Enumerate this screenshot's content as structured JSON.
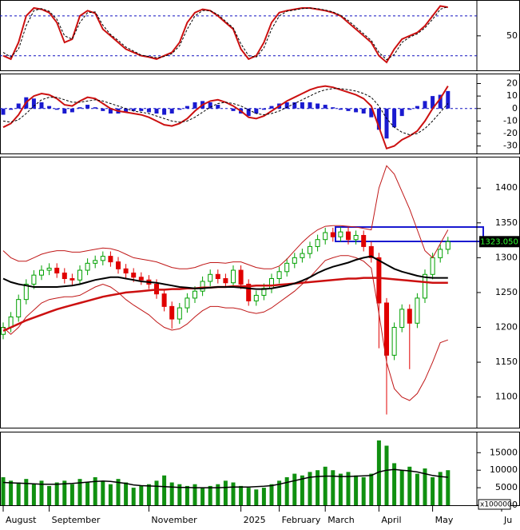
{
  "chart_data": [
    {
      "type": "line",
      "ylim": [
        -2,
        104
      ],
      "yticks": [
        50
      ],
      "levels": [
        80,
        20
      ],
      "level_color": "#1010c0",
      "series": [
        {
          "color": "#cc1010",
          "dash": false,
          "values": [
            20,
            15,
            40,
            80,
            92,
            90,
            85,
            70,
            40,
            45,
            80,
            88,
            84,
            60,
            50,
            40,
            30,
            25,
            20,
            18,
            15,
            20,
            25,
            40,
            70,
            85,
            90,
            88,
            80,
            70,
            60,
            30,
            15,
            20,
            40,
            70,
            85,
            88,
            90,
            92,
            92,
            90,
            88,
            85,
            80,
            70,
            60,
            50,
            40,
            20,
            10,
            30,
            45,
            50,
            55,
            65,
            80,
            95,
            93
          ]
        },
        {
          "color": "#000000",
          "dash": true,
          "values": [
            25,
            18,
            30,
            65,
            88,
            91,
            87,
            75,
            50,
            45,
            70,
            85,
            86,
            66,
            52,
            43,
            33,
            27,
            21,
            19,
            17,
            19,
            23,
            35,
            60,
            80,
            88,
            88,
            82,
            72,
            62,
            38,
            20,
            18,
            32,
            60,
            80,
            87,
            89,
            91,
            92,
            91,
            89,
            86,
            81,
            73,
            63,
            53,
            43,
            25,
            14,
            22,
            40,
            48,
            53,
            62,
            75,
            90,
            94
          ]
        }
      ]
    },
    {
      "type": "line",
      "ylim": [
        -36,
        28
      ],
      "yticks": [
        20,
        10,
        0,
        -10,
        -20,
        -30
      ],
      "levels": [
        0
      ],
      "level_color": "#1010c0",
      "series": [
        {
          "kind": "bar",
          "color": "#1a1ad0",
          "values": [
            -5,
            -1,
            4,
            9,
            8,
            5,
            2,
            -1,
            -4,
            -3,
            1,
            3,
            1,
            -2,
            -4,
            -4,
            -3,
            -2,
            -2,
            -3,
            -4,
            -5,
            -4,
            -1,
            2,
            5,
            6,
            5,
            3,
            0,
            -2,
            -4,
            -6,
            -4,
            -1,
            2,
            4,
            5,
            5,
            5,
            5,
            4,
            3,
            1,
            -1,
            -2,
            -3,
            -4,
            -7,
            -17,
            -24,
            -15,
            -6,
            -1,
            2,
            6,
            10,
            11,
            14
          ]
        },
        {
          "color": "#cc1010",
          "dash": false,
          "values": [
            -15,
            -12,
            -5,
            5,
            10,
            12,
            11,
            8,
            3,
            2,
            6,
            9,
            8,
            4,
            0,
            -2,
            -3,
            -4,
            -5,
            -7,
            -10,
            -13,
            -14,
            -12,
            -8,
            -2,
            3,
            6,
            7,
            5,
            2,
            -2,
            -7,
            -8,
            -6,
            -2,
            2,
            6,
            9,
            12,
            15,
            17,
            18,
            17,
            15,
            13,
            11,
            8,
            2,
            -15,
            -32,
            -30,
            -25,
            -22,
            -18,
            -10,
            0,
            8,
            18
          ]
        },
        {
          "color": "#000000",
          "dash": true,
          "values": [
            -10,
            -11,
            -9,
            -4,
            2,
            7,
            9,
            9,
            7,
            5,
            5,
            6,
            7,
            6,
            4,
            2,
            0,
            -2,
            -3,
            -4,
            -6,
            -8,
            -10,
            -11,
            -10,
            -7,
            -3,
            1,
            4,
            5,
            4,
            2,
            -1,
            -4,
            -5,
            -4,
            -2,
            1,
            4,
            7,
            10,
            13,
            15,
            16,
            16,
            15,
            14,
            12,
            9,
            2,
            -8,
            -15,
            -19,
            -21,
            -20,
            -16,
            -10,
            -3,
            4
          ]
        }
      ]
    },
    {
      "type": "candlestick",
      "ylim": [
        1056,
        1445
      ],
      "yticks": [
        1100,
        1150,
        1200,
        1250,
        1300,
        1350,
        1400
      ],
      "up_color": "#00a000",
      "down_color": "#e00000",
      "last_price_label": "1323.050",
      "open": [
        1190,
        1200,
        1215,
        1240,
        1262,
        1275,
        1282,
        1285,
        1278,
        1270,
        1268,
        1282,
        1292,
        1296,
        1302,
        1294,
        1284,
        1278,
        1272,
        1268,
        1262,
        1248,
        1230,
        1212,
        1228,
        1242,
        1252,
        1266,
        1276,
        1270,
        1264,
        1282,
        1262,
        1238,
        1246,
        1256,
        1270,
        1280,
        1292,
        1300,
        1306,
        1316,
        1326,
        1336,
        1330,
        1337,
        1326,
        1332,
        1316,
        1300,
        1235,
        1160,
        1200,
        1226,
        1206,
        1242,
        1276,
        1300,
        1312
      ],
      "high": [
        1207,
        1222,
        1247,
        1269,
        1282,
        1289,
        1292,
        1292,
        1285,
        1277,
        1289,
        1299,
        1303,
        1309,
        1309,
        1301,
        1291,
        1285,
        1279,
        1275,
        1269,
        1255,
        1237,
        1235,
        1249,
        1259,
        1273,
        1283,
        1283,
        1277,
        1289,
        1289,
        1269,
        1253,
        1263,
        1277,
        1287,
        1299,
        1307,
        1313,
        1323,
        1333,
        1343,
        1343,
        1344,
        1344,
        1339,
        1339,
        1323,
        1307,
        1242,
        1207,
        1233,
        1233,
        1249,
        1283,
        1307,
        1319,
        1330
      ],
      "low": [
        1183,
        1193,
        1208,
        1233,
        1255,
        1268,
        1275,
        1271,
        1263,
        1261,
        1261,
        1275,
        1285,
        1289,
        1287,
        1277,
        1271,
        1265,
        1261,
        1255,
        1241,
        1223,
        1198,
        1205,
        1221,
        1235,
        1245,
        1259,
        1263,
        1257,
        1257,
        1255,
        1231,
        1231,
        1239,
        1249,
        1263,
        1273,
        1285,
        1293,
        1299,
        1309,
        1319,
        1323,
        1323,
        1319,
        1319,
        1309,
        1293,
        1170,
        1075,
        1153,
        1193,
        1140,
        1199,
        1235,
        1269,
        1293,
        1305
      ],
      "close": [
        1200,
        1215,
        1240,
        1262,
        1275,
        1282,
        1285,
        1278,
        1270,
        1268,
        1282,
        1292,
        1296,
        1302,
        1294,
        1284,
        1278,
        1272,
        1268,
        1262,
        1248,
        1230,
        1212,
        1228,
        1242,
        1252,
        1266,
        1276,
        1270,
        1264,
        1282,
        1262,
        1238,
        1246,
        1256,
        1270,
        1280,
        1292,
        1300,
        1306,
        1316,
        1326,
        1336,
        1330,
        1337,
        1326,
        1332,
        1316,
        1300,
        1235,
        1160,
        1200,
        1226,
        1206,
        1242,
        1276,
        1300,
        1312,
        1323.05
      ],
      "series": [
        {
          "color": "#c01818",
          "width": 1,
          "values": [
            1310,
            1300,
            1295,
            1295,
            1300,
            1305,
            1308,
            1310,
            1310,
            1308,
            1308,
            1310,
            1312,
            1314,
            1313,
            1310,
            1305,
            1300,
            1298,
            1296,
            1294,
            1290,
            1286,
            1284,
            1284,
            1286,
            1290,
            1293,
            1293,
            1292,
            1294,
            1294,
            1290,
            1286,
            1284,
            1284,
            1288,
            1298,
            1310,
            1322,
            1332,
            1340,
            1345,
            1346,
            1346,
            1345,
            1344,
            1342,
            1340,
            1400,
            1432,
            1420,
            1395,
            1370,
            1340,
            1310,
            1300,
            1320,
            1340
          ]
        },
        {
          "color": "#c01818",
          "width": 1,
          "values": [
            1200,
            1190,
            1200,
            1215,
            1225,
            1235,
            1240,
            1242,
            1244,
            1244,
            1246,
            1252,
            1258,
            1262,
            1258,
            1250,
            1240,
            1232,
            1225,
            1218,
            1208,
            1200,
            1196,
            1198,
            1205,
            1215,
            1224,
            1230,
            1230,
            1228,
            1228,
            1226,
            1222,
            1220,
            1222,
            1228,
            1236,
            1244,
            1252,
            1262,
            1272,
            1284,
            1296,
            1300,
            1303,
            1303,
            1300,
            1295,
            1285,
            1220,
            1150,
            1112,
            1100,
            1095,
            1105,
            1125,
            1150,
            1178,
            1182
          ]
        },
        {
          "color": "#cc1010",
          "width": 2.5,
          "values": [
            1195,
            1200,
            1205,
            1210,
            1214,
            1218,
            1222,
            1226,
            1229,
            1232,
            1235,
            1238,
            1241,
            1244,
            1246,
            1248,
            1250,
            1251,
            1252,
            1253,
            1254,
            1254,
            1255,
            1255,
            1256,
            1256,
            1257,
            1257,
            1258,
            1258,
            1259,
            1259,
            1259,
            1260,
            1260,
            1260,
            1261,
            1262,
            1263,
            1264,
            1265,
            1266,
            1267,
            1268,
            1269,
            1270,
            1270,
            1271,
            1271,
            1271,
            1270,
            1269,
            1268,
            1267,
            1266,
            1265,
            1264,
            1264,
            1264
          ]
        },
        {
          "color": "#000000",
          "width": 2,
          "values": [
            1270,
            1265,
            1262,
            1260,
            1258,
            1258,
            1258,
            1258,
            1259,
            1260,
            1262,
            1265,
            1268,
            1270,
            1272,
            1272,
            1270,
            1268,
            1266,
            1265,
            1264,
            1262,
            1260,
            1258,
            1257,
            1256,
            1256,
            1257,
            1258,
            1258,
            1258,
            1257,
            1256,
            1255,
            1255,
            1256,
            1258,
            1260,
            1263,
            1267,
            1272,
            1278,
            1283,
            1287,
            1290,
            1293,
            1297,
            1300,
            1302,
            1296,
            1290,
            1284,
            1280,
            1277,
            1274,
            1272,
            1271,
            1271,
            1271
          ]
        }
      ]
    },
    {
      "type": "bar",
      "ylim": [
        0,
        21000
      ],
      "yticks": [
        0,
        5000,
        10000,
        15000
      ],
      "unit_label": "x100000",
      "categories": [
        "August",
        null,
        null,
        null,
        null,
        null,
        "September",
        null,
        null,
        null,
        null,
        null,
        null,
        null,
        null,
        null,
        null,
        null,
        null,
        "November",
        null,
        null,
        null,
        null,
        null,
        null,
        null,
        null,
        null,
        null,
        null,
        "2025",
        null,
        null,
        null,
        null,
        "February",
        null,
        null,
        null,
        null,
        null,
        "March",
        null,
        null,
        null,
        null,
        null,
        null,
        "April",
        null,
        null,
        null,
        null,
        null,
        null,
        "May",
        null,
        null
      ],
      "next_label": "Ju",
      "series": [
        {
          "kind": "bar",
          "color": "#109010",
          "values": [
            8000,
            7000,
            6500,
            7500,
            6000,
            7000,
            5500,
            6500,
            7000,
            6000,
            7500,
            6500,
            8000,
            7000,
            6000,
            7500,
            6500,
            5000,
            5500,
            6000,
            7000,
            8500,
            6500,
            6000,
            5500,
            6000,
            5000,
            5500,
            6000,
            7000,
            6500,
            5500,
            5000,
            4500,
            5000,
            6000,
            7000,
            8000,
            9000,
            8500,
            9500,
            10000,
            11000,
            10000,
            9000,
            9500,
            8500,
            8000,
            9000,
            18500,
            17000,
            12000,
            10000,
            11000,
            9000,
            10500,
            8000,
            9500,
            10000
          ]
        },
        {
          "color": "#000000",
          "dash": false,
          "width": 1.5,
          "values": [
            6500,
            6400,
            6300,
            6200,
            6100,
            6000,
            6000,
            6000,
            6100,
            6200,
            6400,
            6600,
            6800,
            6900,
            6800,
            6500,
            6200,
            5800,
            5600,
            5500,
            5400,
            5300,
            5200,
            5100,
            5100,
            5000,
            5000,
            5000,
            5000,
            5100,
            5200,
            5200,
            5200,
            5300,
            5400,
            5600,
            6000,
            6500,
            7000,
            7500,
            8000,
            8200,
            8300,
            8300,
            8200,
            8200,
            8300,
            8400,
            8500,
            9500,
            10000,
            10200,
            10000,
            9800,
            9500,
            9000,
            8500,
            8200,
            8000
          ]
        }
      ]
    }
  ]
}
